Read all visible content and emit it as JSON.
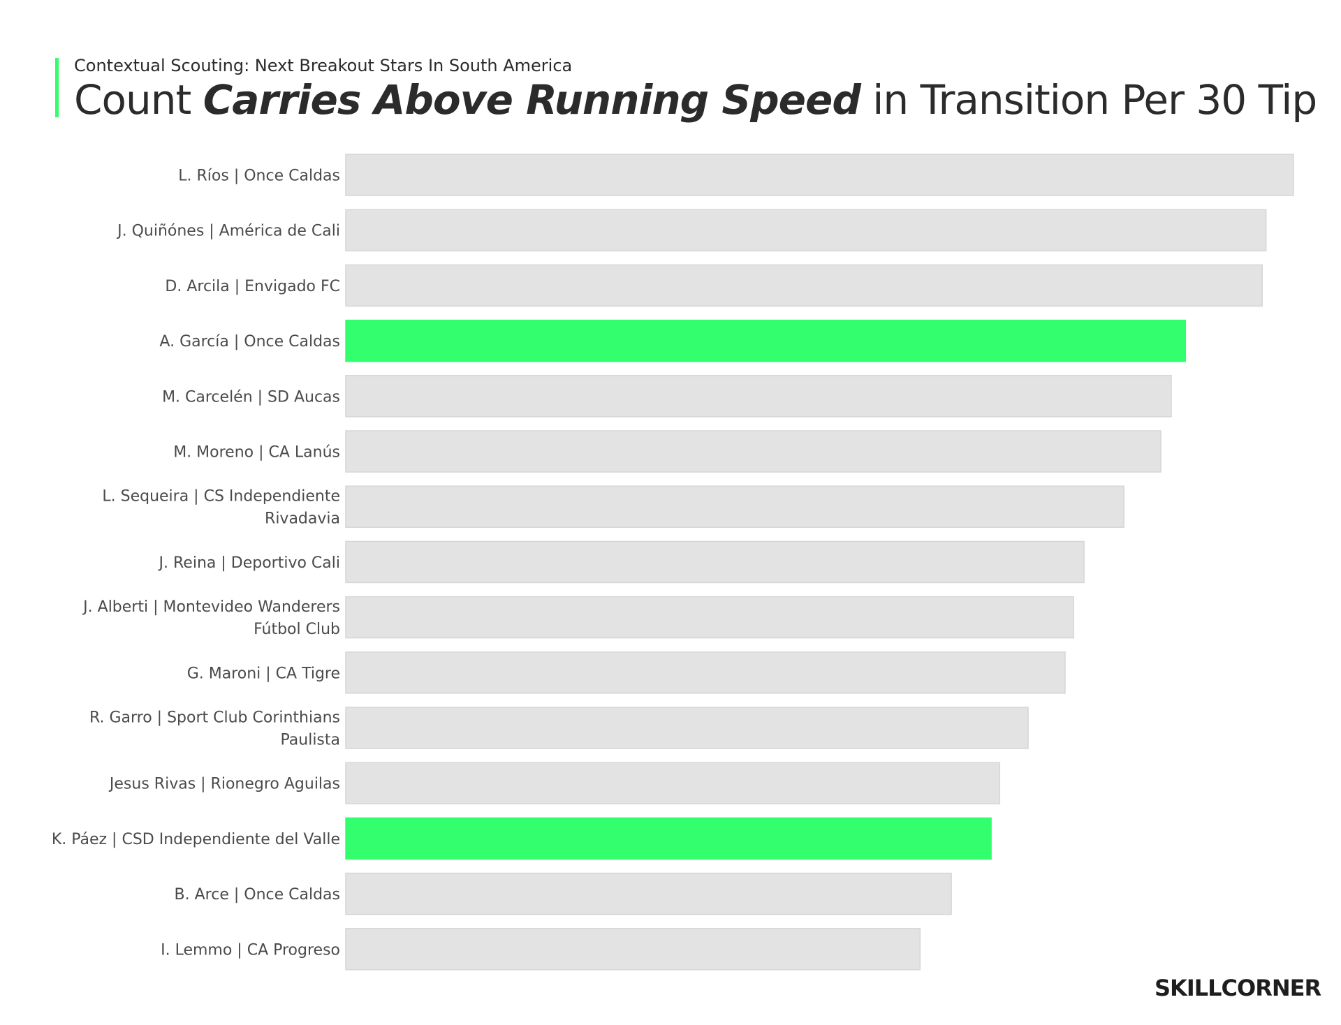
{
  "header": {
    "subtitle": "Contextual Scouting: Next Breakout Stars In South America",
    "title_pre": "Count ",
    "title_emph": "Carries Above Running Speed",
    "title_post": " in Transition Per 30 Tip"
  },
  "logo": {
    "text": "SKILLCORNER"
  },
  "colors": {
    "bar_default": "#e3e3e3",
    "bar_highlight": "#33ff6e",
    "accent": "#33ff6e",
    "label_text": "#4a4a4a"
  },
  "chart_data": {
    "type": "bar",
    "orientation": "horizontal",
    "categories": [
      [
        "L. Ríos | Once Caldas"
      ],
      [
        "J. Quiñónes | América de Cali"
      ],
      [
        "D. Arcila | Envigado FC"
      ],
      [
        "A. García | Once Caldas"
      ],
      [
        "M. Carcelén | SD Aucas"
      ],
      [
        "M. Moreno | CA Lanús"
      ],
      [
        "L. Sequeira | CS Independiente",
        "Rivadavia"
      ],
      [
        "J. Reina | Deportivo Cali"
      ],
      [
        "J. Alberti | Montevideo Wanderers",
        "Fútbol Club"
      ],
      [
        "G. Maroni | CA Tigre"
      ],
      [
        "R. Garro | Sport Club Corinthians",
        "Paulista"
      ],
      [
        "Jesus Rivas | Rionegro Aguilas"
      ],
      [
        "K. Páez | CSD Independiente del Valle"
      ],
      [
        "B. Arce | Once Caldas"
      ],
      [
        "I. Lemmo | CA Progreso"
      ]
    ],
    "values": [
      100,
      97.1,
      96.7,
      88.6,
      87.1,
      86.0,
      82.1,
      77.9,
      76.8,
      75.9,
      72.0,
      69.0,
      68.1,
      63.9,
      60.6
    ],
    "highlighted": [
      false,
      false,
      false,
      true,
      false,
      false,
      false,
      false,
      false,
      false,
      false,
      false,
      true,
      false,
      false
    ],
    "xlim": [
      0,
      100
    ],
    "grid": false,
    "legend": "none"
  }
}
